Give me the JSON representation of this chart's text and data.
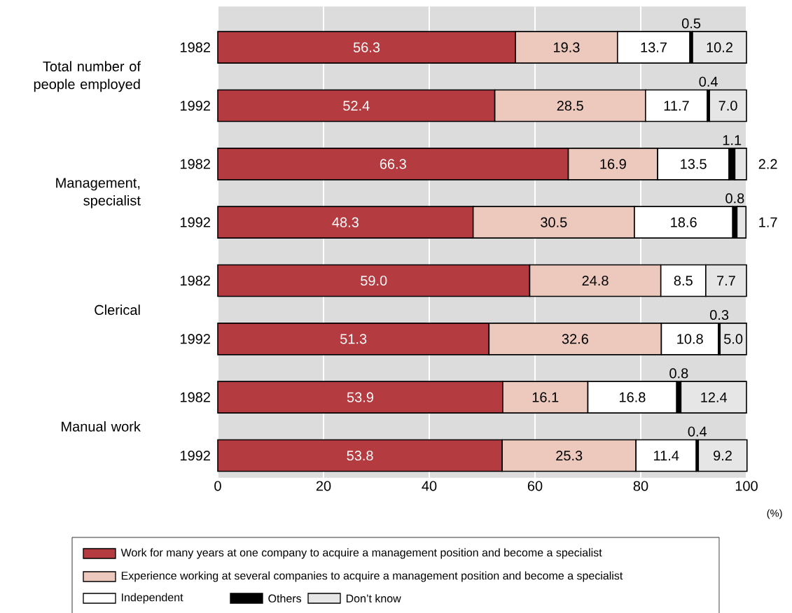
{
  "chart_data": {
    "type": "bar",
    "orientation": "horizontal",
    "stacked": true,
    "xlabel": "(%)",
    "categories": [
      "1982",
      "1992",
      "1982",
      "1992",
      "1982",
      "1992",
      "1982",
      "1992"
    ],
    "series": [
      {
        "name": "Work for many years at one company to acquire a management position and become a specialist",
        "color": "#b43c41",
        "values": [
          56.3,
          52.4,
          66.3,
          48.3,
          59.0,
          51.3,
          53.9,
          53.8
        ],
        "value_labels": [
          "56.3",
          "52.4",
          "66.3",
          "48.3",
          "59.0",
          "51.3",
          "53.9",
          "53.8"
        ]
      },
      {
        "name": "Experience working at several companies to acquire a management position and become a specialist",
        "color": "#ecc9bc",
        "values": [
          19.3,
          28.5,
          16.9,
          30.5,
          24.8,
          32.6,
          16.1,
          25.3
        ],
        "value_labels": [
          "19.3",
          "28.5",
          "16.9",
          "30.5",
          "24.8",
          "32.6",
          "16.1",
          "25.3"
        ]
      },
      {
        "name": "Independent",
        "color": "#ffffff",
        "values": [
          13.7,
          11.7,
          13.5,
          18.6,
          8.5,
          10.8,
          16.8,
          11.4
        ],
        "value_labels": [
          "13.7",
          "11.7",
          "13.5",
          "18.6",
          "8.5",
          "10.8",
          "16.8",
          "11.4"
        ]
      },
      {
        "name": "Others",
        "color": "#000000",
        "values": [
          0.5,
          0.4,
          1.1,
          0.8,
          null,
          0.3,
          0.8,
          0.4
        ],
        "value_labels": [
          "0.5",
          "0.4",
          "1.1",
          "0.8",
          null,
          "0.3",
          "0.8",
          "0.4"
        ]
      },
      {
        "name": "Don’t know",
        "color": "#e6e6e6",
        "values": [
          10.2,
          7.0,
          2.2,
          1.7,
          7.7,
          5.0,
          12.4,
          9.2
        ],
        "value_labels": [
          "10.2",
          "7.0",
          "2.2",
          "1.7",
          "7.7",
          "5.0",
          "12.4",
          "9.2"
        ]
      }
    ],
    "annotations": [
      "Total number of people employed",
      "Management, specialist",
      "Clerical",
      "Manual work"
    ],
    "xlim": [
      0,
      100
    ],
    "xticks": [
      0,
      20,
      40,
      60,
      80,
      100
    ],
    "grid": "x",
    "legend": "bottom"
  }
}
